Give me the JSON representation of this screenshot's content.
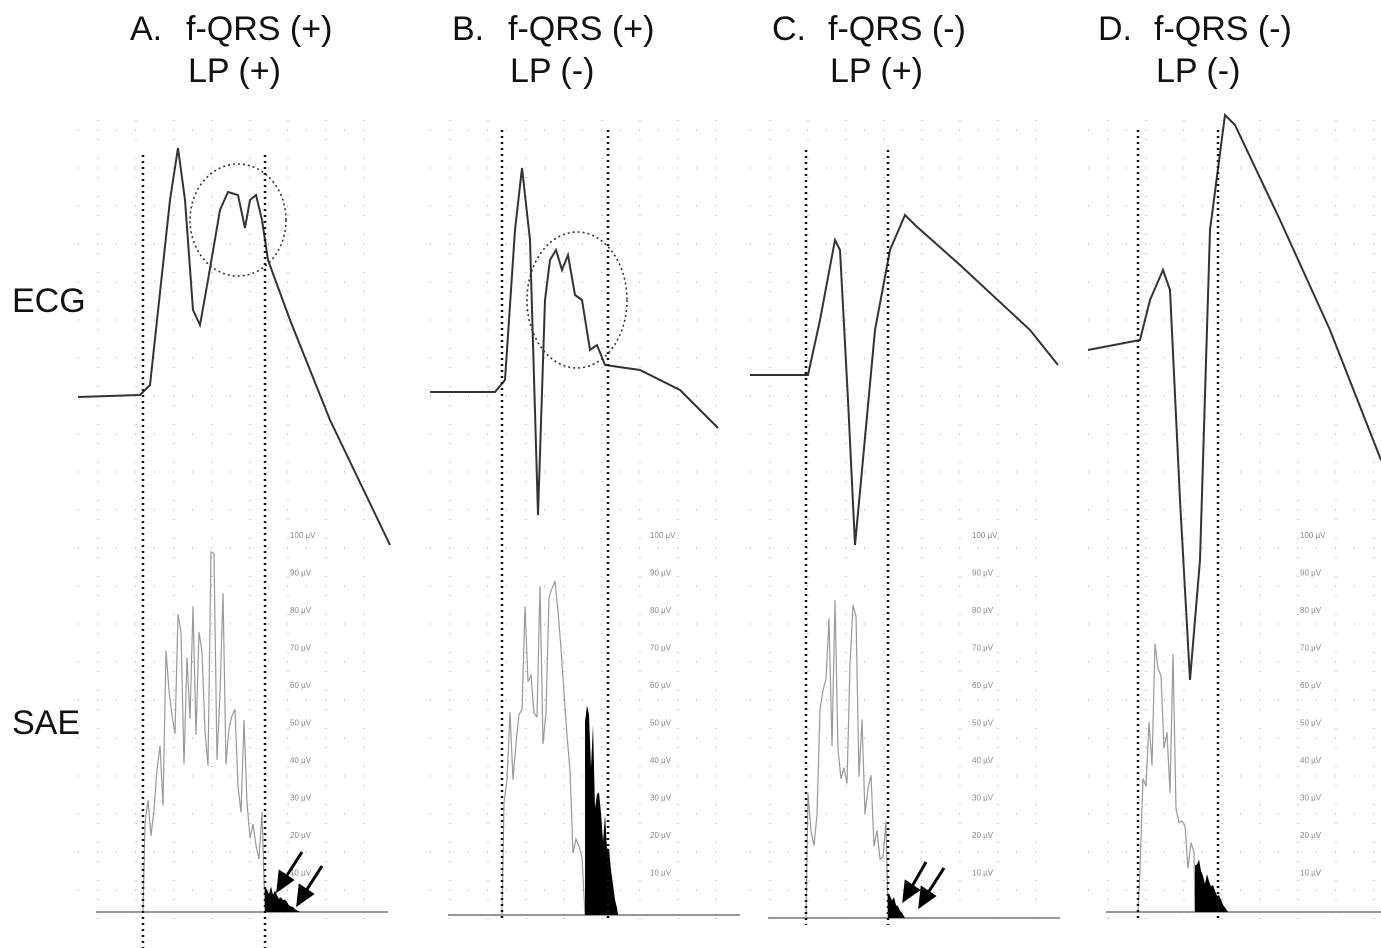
{
  "panels": [
    {
      "letter": "A.",
      "qrs": "f-QRS (+)",
      "lp": "LP (+)"
    },
    {
      "letter": "B.",
      "qrs": "f-QRS (+)",
      "lp": "LP (-)"
    },
    {
      "letter": "C.",
      "qrs": "f-QRS (-)",
      "lp": "LP (+)"
    },
    {
      "letter": "D.",
      "qrs": "f-QRS (-)",
      "lp": "LP (-)"
    }
  ],
  "rows": [
    "ECG",
    "SAE"
  ],
  "scale_labels": [
    "100 µV",
    "90 µV",
    "80 µV",
    "70 µV",
    "60 µV",
    "50 µV",
    "40 µV",
    "30 µV",
    "20 µV",
    "10 µV"
  ]
}
